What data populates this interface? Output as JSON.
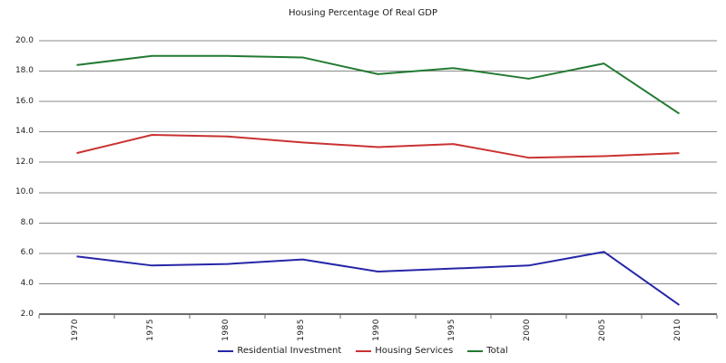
{
  "chart_data": {
    "type": "line",
    "title": "Housing Percentage Of Real GDP",
    "categories": [
      "1970",
      "1975",
      "1980",
      "1985",
      "1990",
      "1995",
      "2000",
      "2005",
      "2010"
    ],
    "series": [
      {
        "name": "Residential Investment",
        "color": "#2626A8",
        "values": [
          5.8,
          5.2,
          5.3,
          5.6,
          4.8,
          5.0,
          5.2,
          6.1,
          2.6
        ]
      },
      {
        "name": "Housing Services",
        "color": "#C93231",
        "values": [
          12.6,
          13.8,
          13.7,
          13.3,
          13.0,
          13.2,
          12.3,
          12.4,
          12.6
        ]
      },
      {
        "name": "Total",
        "color": "#237A32",
        "values": [
          18.4,
          19.0,
          19.0,
          18.9,
          17.8,
          18.2,
          17.5,
          18.5,
          15.2
        ]
      }
    ],
    "ylim": [
      2.0,
      20.0
    ],
    "ytick_step": 2.0,
    "y_tick_labels": [
      "2.0",
      "4.0",
      "6.0",
      "8.0",
      "10.0",
      "12.0",
      "14.0",
      "16.0",
      "18.0",
      "20.0"
    ],
    "grid": true,
    "legend_position": "bottom",
    "gridline_color": "#8a8a8a",
    "axis_color": "#6b6b6b"
  }
}
